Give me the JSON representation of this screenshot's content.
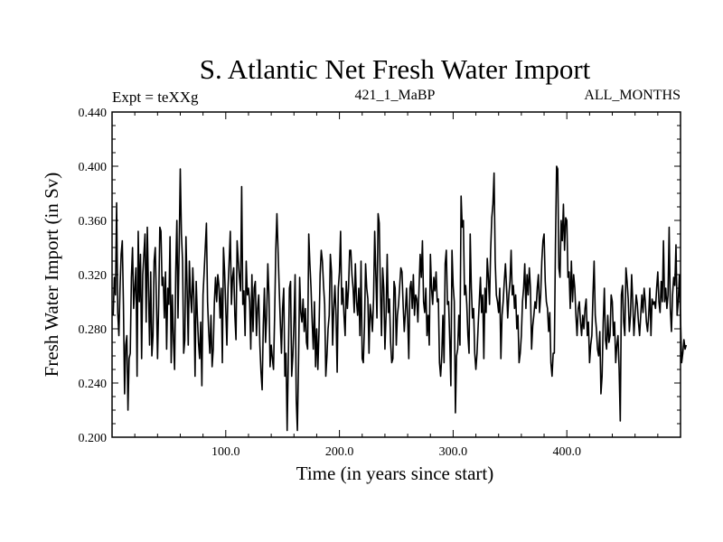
{
  "chart_data": {
    "type": "line",
    "title": "S. Atlantic Net Fresh Water Import",
    "subtitle_left": "Expt = teXXg",
    "subtitle_center": "421_1_MaBP",
    "subtitle_right": "ALL_MONTHS",
    "xlabel": "Time (in years since start)",
    "ylabel": "Fresh Water Import (in Sv)",
    "xlim": [
      0,
      500
    ],
    "ylim": [
      0.2,
      0.44
    ],
    "x_ticks": [
      100,
      200,
      300,
      400
    ],
    "x_tick_labels": [
      "100.0",
      "200.0",
      "300.0",
      "400.0"
    ],
    "y_ticks": [
      0.2,
      0.24,
      0.28,
      0.32,
      0.36,
      0.4,
      0.44
    ],
    "y_tick_labels": [
      "0.200",
      "0.240",
      "0.280",
      "0.320",
      "0.360",
      "0.400",
      "0.440"
    ],
    "grid": false,
    "series": [
      {
        "name": "Net fresh water import",
        "x_start": 1,
        "x_step": 1,
        "values": [
          0.29,
          0.318,
          0.305,
          0.373,
          0.292,
          0.275,
          0.31,
          0.335,
          0.345,
          0.298,
          0.232,
          0.268,
          0.275,
          0.22,
          0.258,
          0.262,
          0.318,
          0.34,
          0.295,
          0.31,
          0.325,
          0.245,
          0.352,
          0.3,
          0.335,
          0.258,
          0.32,
          0.335,
          0.35,
          0.285,
          0.355,
          0.31,
          0.268,
          0.322,
          0.26,
          0.275,
          0.33,
          0.34,
          0.302,
          0.258,
          0.298,
          0.355,
          0.352,
          0.312,
          0.318,
          0.288,
          0.322,
          0.265,
          0.31,
          0.298,
          0.348,
          0.255,
          0.305,
          0.272,
          0.25,
          0.322,
          0.36,
          0.288,
          0.338,
          0.398,
          0.35,
          0.33,
          0.262,
          0.272,
          0.348,
          0.31,
          0.268,
          0.33,
          0.305,
          0.292,
          0.325,
          0.302,
          0.245,
          0.315,
          0.29,
          0.27,
          0.258,
          0.285,
          0.238,
          0.305,
          0.322,
          0.34,
          0.358,
          0.3,
          0.278,
          0.262,
          0.29,
          0.252,
          0.265,
          0.3,
          0.318,
          0.3,
          0.32,
          0.312,
          0.288,
          0.31,
          0.255,
          0.34,
          0.322,
          0.295,
          0.268,
          0.31,
          0.33,
          0.352,
          0.298,
          0.318,
          0.325,
          0.29,
          0.272,
          0.345,
          0.33,
          0.318,
          0.308,
          0.385,
          0.298,
          0.308,
          0.275,
          0.33,
          0.305,
          0.31,
          0.3,
          0.265,
          0.32,
          0.278,
          0.31,
          0.315,
          0.275,
          0.295,
          0.305,
          0.268,
          0.248,
          0.235,
          0.282,
          0.31,
          0.27,
          0.29,
          0.328,
          0.305,
          0.252,
          0.268,
          0.258,
          0.25,
          0.29,
          0.338,
          0.365,
          0.338,
          0.31,
          0.285,
          0.262,
          0.295,
          0.31,
          0.245,
          0.262,
          0.205,
          0.255,
          0.31,
          0.315,
          0.245,
          0.26,
          0.285,
          0.32,
          0.228,
          0.205,
          0.255,
          0.318,
          0.292,
          0.285,
          0.302,
          0.278,
          0.295,
          0.27,
          0.265,
          0.35,
          0.328,
          0.31,
          0.285,
          0.265,
          0.3,
          0.252,
          0.28,
          0.25,
          0.278,
          0.32,
          0.338,
          0.33,
          0.312,
          0.298,
          0.245,
          0.26,
          0.28,
          0.29,
          0.335,
          0.322,
          0.268,
          0.295,
          0.312,
          0.29,
          0.248,
          0.31,
          0.322,
          0.352,
          0.298,
          0.31,
          0.29,
          0.275,
          0.315,
          0.295,
          0.31,
          0.338,
          0.338,
          0.32,
          0.31,
          0.292,
          0.328,
          0.3,
          0.29,
          0.31,
          0.275,
          0.33,
          0.258,
          0.255,
          0.282,
          0.328,
          0.31,
          0.302,
          0.262,
          0.298,
          0.29,
          0.278,
          0.302,
          0.352,
          0.32,
          0.288,
          0.365,
          0.358,
          0.31,
          0.275,
          0.325,
          0.31,
          0.265,
          0.29,
          0.335,
          0.292,
          0.302,
          0.27,
          0.255,
          0.258,
          0.315,
          0.31,
          0.268,
          0.29,
          0.298,
          0.312,
          0.325,
          0.322,
          0.298,
          0.278,
          0.292,
          0.31,
          0.288,
          0.258,
          0.31,
          0.315,
          0.295,
          0.32,
          0.29,
          0.305,
          0.302,
          0.285,
          0.31,
          0.335,
          0.318,
          0.345,
          0.3,
          0.292,
          0.31,
          0.275,
          0.29,
          0.268,
          0.335,
          0.31,
          0.298,
          0.318,
          0.308,
          0.322,
          0.3,
          0.302,
          0.255,
          0.245,
          0.26,
          0.29,
          0.255,
          0.328,
          0.338,
          0.298,
          0.3,
          0.272,
          0.238,
          0.338,
          0.312,
          0.3,
          0.218,
          0.26,
          0.265,
          0.29,
          0.268,
          0.378,
          0.355,
          0.36,
          0.305,
          0.312,
          0.298,
          0.275,
          0.262,
          0.35,
          0.31,
          0.288,
          0.295,
          0.262,
          0.25,
          0.262,
          0.282,
          0.3,
          0.318,
          0.292,
          0.305,
          0.258,
          0.31,
          0.292,
          0.332,
          0.318,
          0.298,
          0.338,
          0.362,
          0.372,
          0.395,
          0.33,
          0.305,
          0.3,
          0.292,
          0.31,
          0.258,
          0.29,
          0.3,
          0.315,
          0.328,
          0.31,
          0.288,
          0.305,
          0.315,
          0.338,
          0.305,
          0.312,
          0.295,
          0.305,
          0.28,
          0.29,
          0.255,
          0.262,
          0.275,
          0.3,
          0.31,
          0.328,
          0.295,
          0.32,
          0.305,
          0.325,
          0.31,
          0.265,
          0.282,
          0.29,
          0.3,
          0.295,
          0.31,
          0.32,
          0.292,
          0.305,
          0.33,
          0.345,
          0.35,
          0.315,
          0.3,
          0.295,
          0.278,
          0.292,
          0.255,
          0.245,
          0.262,
          0.262,
          0.342,
          0.4,
          0.398,
          0.325,
          0.318,
          0.36,
          0.345,
          0.372,
          0.338,
          0.362,
          0.36,
          0.318,
          0.322,
          0.295,
          0.33,
          0.3,
          0.32,
          0.31,
          0.29,
          0.275,
          0.295,
          0.3,
          0.285,
          0.275,
          0.29,
          0.28,
          0.295,
          0.302,
          0.275,
          0.285,
          0.255,
          0.268,
          0.275,
          0.305,
          0.33,
          0.29,
          0.28,
          0.265,
          0.26,
          0.278,
          0.232,
          0.245,
          0.285,
          0.31,
          0.272,
          0.265,
          0.29,
          0.27,
          0.275,
          0.305,
          0.3,
          0.275,
          0.285,
          0.255,
          0.268,
          0.275,
          0.25,
          0.212,
          0.305,
          0.312,
          0.285,
          0.275,
          0.325,
          0.315,
          0.302,
          0.278,
          0.29,
          0.32,
          0.3,
          0.275,
          0.29,
          0.305,
          0.298,
          0.285,
          0.275,
          0.29,
          0.305,
          0.292,
          0.31,
          0.3,
          0.285,
          0.278,
          0.29,
          0.31,
          0.275,
          0.302,
          0.298,
          0.3,
          0.295,
          0.31,
          0.322,
          0.3,
          0.292,
          0.315,
          0.3,
          0.345,
          0.3,
          0.31,
          0.295,
          0.305,
          0.355,
          0.295,
          0.278,
          0.305,
          0.318,
          0.312,
          0.342,
          0.29,
          0.3,
          0.32,
          0.288,
          0.255,
          0.262,
          0.272,
          0.265,
          0.268
        ]
      }
    ]
  }
}
